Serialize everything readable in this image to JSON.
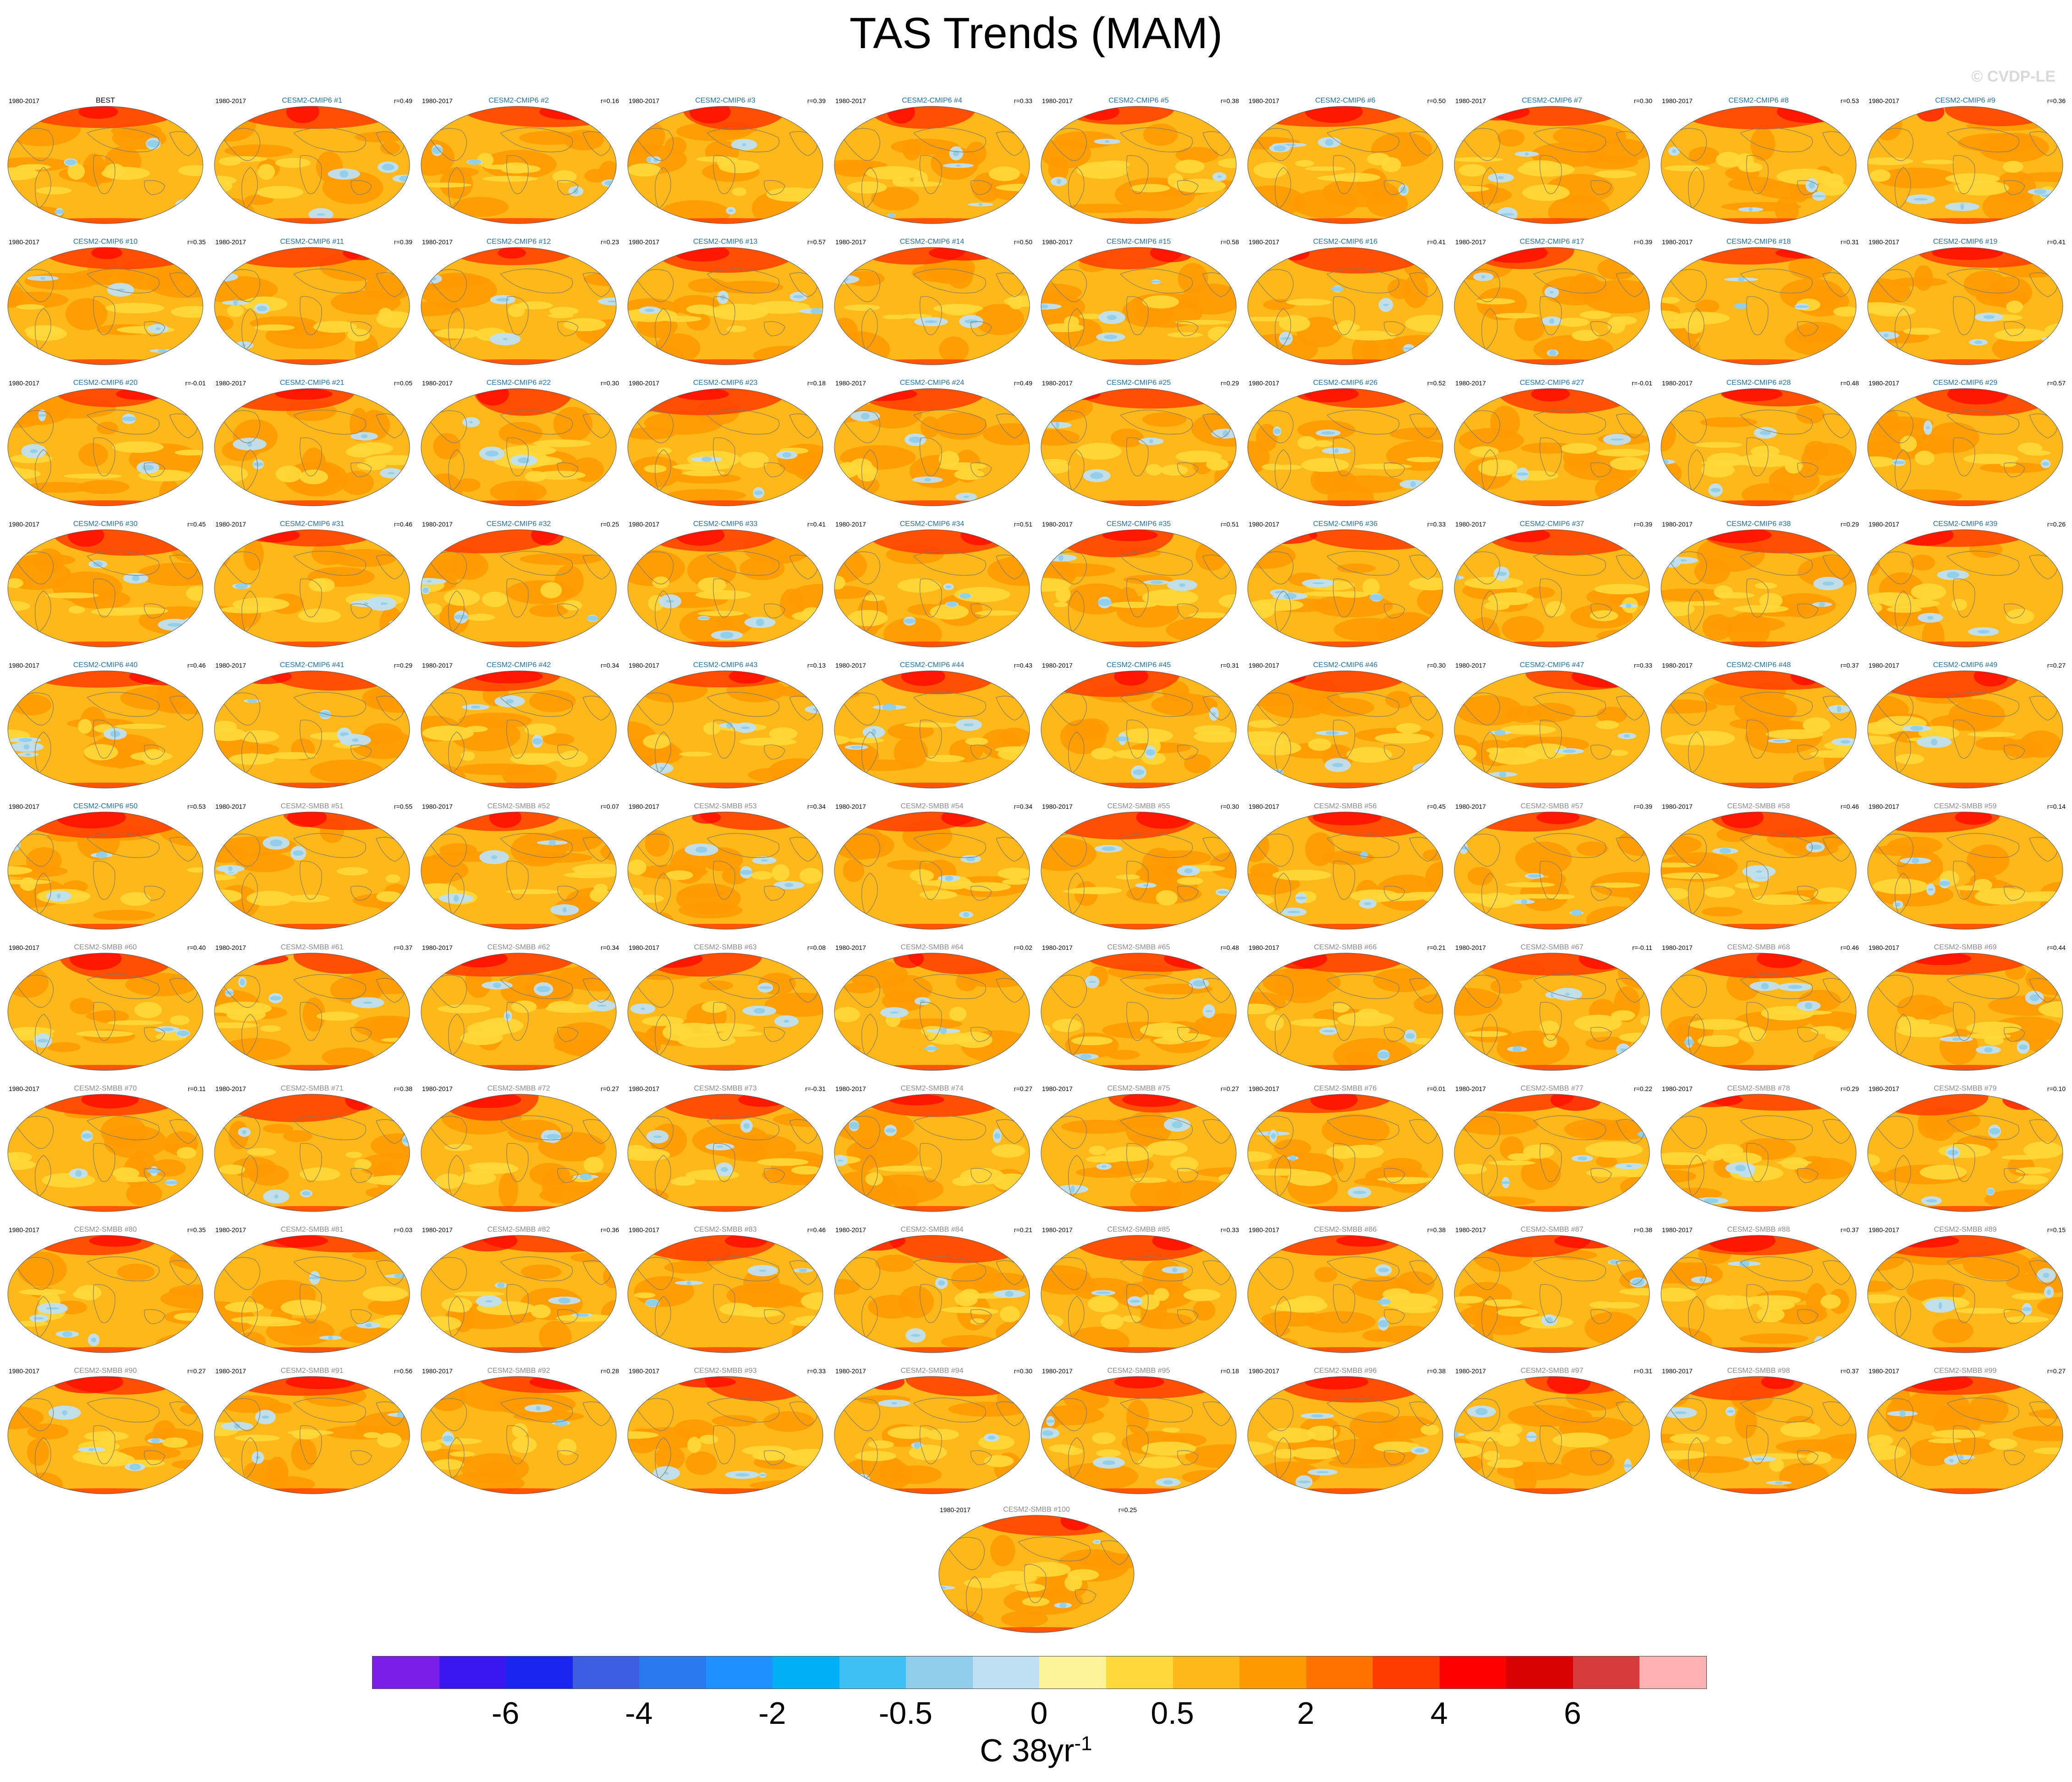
{
  "title": "TAS Trends (MAM)",
  "watermark": "© CVDP-LE",
  "period": "1980-2017",
  "panels": [
    {
      "name": "BEST",
      "corr": "",
      "group": "obs"
    },
    {
      "name": "CESM2-CMIP6 #1",
      "corr": "r=0.49",
      "group": "cmip"
    },
    {
      "name": "CESM2-CMIP6 #2",
      "corr": "r=0.16",
      "group": "cmip"
    },
    {
      "name": "CESM2-CMIP6 #3",
      "corr": "r=0.39",
      "group": "cmip"
    },
    {
      "name": "CESM2-CMIP6 #4",
      "corr": "r=0.33",
      "group": "cmip"
    },
    {
      "name": "CESM2-CMIP6 #5",
      "corr": "r=0.38",
      "group": "cmip"
    },
    {
      "name": "CESM2-CMIP6 #6",
      "corr": "r=0.50",
      "group": "cmip"
    },
    {
      "name": "CESM2-CMIP6 #7",
      "corr": "r=0.30",
      "group": "cmip"
    },
    {
      "name": "CESM2-CMIP6 #8",
      "corr": "r=0.53",
      "group": "cmip"
    },
    {
      "name": "CESM2-CMIP6 #9",
      "corr": "r=0.36",
      "group": "cmip"
    },
    {
      "name": "CESM2-CMIP6 #10",
      "corr": "r=0.35",
      "group": "cmip"
    },
    {
      "name": "CESM2-CMIP6 #11",
      "corr": "r=0.39",
      "group": "cmip"
    },
    {
      "name": "CESM2-CMIP6 #12",
      "corr": "r=0.23",
      "group": "cmip"
    },
    {
      "name": "CESM2-CMIP6 #13",
      "corr": "r=0.57",
      "group": "cmip"
    },
    {
      "name": "CESM2-CMIP6 #14",
      "corr": "r=0.50",
      "group": "cmip"
    },
    {
      "name": "CESM2-CMIP6 #15",
      "corr": "r=0.58",
      "group": "cmip"
    },
    {
      "name": "CESM2-CMIP6 #16",
      "corr": "r=0.41",
      "group": "cmip"
    },
    {
      "name": "CESM2-CMIP6 #17",
      "corr": "r=0.39",
      "group": "cmip"
    },
    {
      "name": "CESM2-CMIP6 #18",
      "corr": "r=0.31",
      "group": "cmip"
    },
    {
      "name": "CESM2-CMIP6 #19",
      "corr": "r=0.41",
      "group": "cmip"
    },
    {
      "name": "CESM2-CMIP6 #20",
      "corr": "r=-0.01",
      "group": "cmip"
    },
    {
      "name": "CESM2-CMIP6 #21",
      "corr": "r=0.05",
      "group": "cmip"
    },
    {
      "name": "CESM2-CMIP6 #22",
      "corr": "r=0.30",
      "group": "cmip"
    },
    {
      "name": "CESM2-CMIP6 #23",
      "corr": "r=0.18",
      "group": "cmip"
    },
    {
      "name": "CESM2-CMIP6 #24",
      "corr": "r=0.49",
      "group": "cmip"
    },
    {
      "name": "CESM2-CMIP6 #25",
      "corr": "r=0.29",
      "group": "cmip"
    },
    {
      "name": "CESM2-CMIP6 #26",
      "corr": "r=0.52",
      "group": "cmip"
    },
    {
      "name": "CESM2-CMIP6 #27",
      "corr": "r=-0.01",
      "group": "cmip"
    },
    {
      "name": "CESM2-CMIP6 #28",
      "corr": "r=0.48",
      "group": "cmip"
    },
    {
      "name": "CESM2-CMIP6 #29",
      "corr": "r=0.57",
      "group": "cmip"
    },
    {
      "name": "CESM2-CMIP6 #30",
      "corr": "r=0.45",
      "group": "cmip"
    },
    {
      "name": "CESM2-CMIP6 #31",
      "corr": "r=0.46",
      "group": "cmip"
    },
    {
      "name": "CESM2-CMIP6 #32",
      "corr": "r=0.25",
      "group": "cmip"
    },
    {
      "name": "CESM2-CMIP6 #33",
      "corr": "r=0.41",
      "group": "cmip"
    },
    {
      "name": "CESM2-CMIP6 #34",
      "corr": "r=0.51",
      "group": "cmip"
    },
    {
      "name": "CESM2-CMIP6 #35",
      "corr": "r=0.51",
      "group": "cmip"
    },
    {
      "name": "CESM2-CMIP6 #36",
      "corr": "r=0.33",
      "group": "cmip"
    },
    {
      "name": "CESM2-CMIP6 #37",
      "corr": "r=0.39",
      "group": "cmip"
    },
    {
      "name": "CESM2-CMIP6 #38",
      "corr": "r=0.29",
      "group": "cmip"
    },
    {
      "name": "CESM2-CMIP6 #39",
      "corr": "r=0.26",
      "group": "cmip"
    },
    {
      "name": "CESM2-CMIP6 #40",
      "corr": "r=0.46",
      "group": "cmip"
    },
    {
      "name": "CESM2-CMIP6 #41",
      "corr": "r=0.29",
      "group": "cmip"
    },
    {
      "name": "CESM2-CMIP6 #42",
      "corr": "r=0.34",
      "group": "cmip"
    },
    {
      "name": "CESM2-CMIP6 #43",
      "corr": "r=0.13",
      "group": "cmip"
    },
    {
      "name": "CESM2-CMIP6 #44",
      "corr": "r=0.43",
      "group": "cmip"
    },
    {
      "name": "CESM2-CMIP6 #45",
      "corr": "r=0.31",
      "group": "cmip"
    },
    {
      "name": "CESM2-CMIP6 #46",
      "corr": "r=0.30",
      "group": "cmip"
    },
    {
      "name": "CESM2-CMIP6 #47",
      "corr": "r=0.33",
      "group": "cmip"
    },
    {
      "name": "CESM2-CMIP6 #48",
      "corr": "r=0.37",
      "group": "cmip"
    },
    {
      "name": "CESM2-CMIP6 #49",
      "corr": "r=0.27",
      "group": "cmip"
    },
    {
      "name": "CESM2-CMIP6 #50",
      "corr": "r=0.53",
      "group": "cmip"
    },
    {
      "name": "CESM2-SMBB #51",
      "corr": "r=0.55",
      "group": "smbb"
    },
    {
      "name": "CESM2-SMBB #52",
      "corr": "r=0.07",
      "group": "smbb"
    },
    {
      "name": "CESM2-SMBB #53",
      "corr": "r=0.34",
      "group": "smbb"
    },
    {
      "name": "CESM2-SMBB #54",
      "corr": "r=0.34",
      "group": "smbb"
    },
    {
      "name": "CESM2-SMBB #55",
      "corr": "r=0.30",
      "group": "smbb"
    },
    {
      "name": "CESM2-SMBB #56",
      "corr": "r=0.45",
      "group": "smbb"
    },
    {
      "name": "CESM2-SMBB #57",
      "corr": "r=0.39",
      "group": "smbb"
    },
    {
      "name": "CESM2-SMBB #58",
      "corr": "r=0.46",
      "group": "smbb"
    },
    {
      "name": "CESM2-SMBB #59",
      "corr": "r=0.14",
      "group": "smbb"
    },
    {
      "name": "CESM2-SMBB #60",
      "corr": "r=0.40",
      "group": "smbb"
    },
    {
      "name": "CESM2-SMBB #61",
      "corr": "r=0.37",
      "group": "smbb"
    },
    {
      "name": "CESM2-SMBB #62",
      "corr": "r=0.34",
      "group": "smbb"
    },
    {
      "name": "CESM2-SMBB #63",
      "corr": "r=0.08",
      "group": "smbb"
    },
    {
      "name": "CESM2-SMBB #64",
      "corr": "r=0.02",
      "group": "smbb"
    },
    {
      "name": "CESM2-SMBB #65",
      "corr": "r=0.48",
      "group": "smbb"
    },
    {
      "name": "CESM2-SMBB #66",
      "corr": "r=0.21",
      "group": "smbb"
    },
    {
      "name": "CESM2-SMBB #67",
      "corr": "r=-0.11",
      "group": "smbb"
    },
    {
      "name": "CESM2-SMBB #68",
      "corr": "r=0.46",
      "group": "smbb"
    },
    {
      "name": "CESM2-SMBB #69",
      "corr": "r=0.44",
      "group": "smbb"
    },
    {
      "name": "CESM2-SMBB #70",
      "corr": "r=0.11",
      "group": "smbb"
    },
    {
      "name": "CESM2-SMBB #71",
      "corr": "r=0.38",
      "group": "smbb"
    },
    {
      "name": "CESM2-SMBB #72",
      "corr": "r=0.27",
      "group": "smbb"
    },
    {
      "name": "CESM2-SMBB #73",
      "corr": "r=-0.31",
      "group": "smbb"
    },
    {
      "name": "CESM2-SMBB #74",
      "corr": "r=0.27",
      "group": "smbb"
    },
    {
      "name": "CESM2-SMBB #75",
      "corr": "r=0.27",
      "group": "smbb"
    },
    {
      "name": "CESM2-SMBB #76",
      "corr": "r=0.01",
      "group": "smbb"
    },
    {
      "name": "CESM2-SMBB #77",
      "corr": "r=0.22",
      "group": "smbb"
    },
    {
      "name": "CESM2-SMBB #78",
      "corr": "r=0.29",
      "group": "smbb"
    },
    {
      "name": "CESM2-SMBB #79",
      "corr": "r=0.10",
      "group": "smbb"
    },
    {
      "name": "CESM2-SMBB #80",
      "corr": "r=0.35",
      "group": "smbb"
    },
    {
      "name": "CESM2-SMBB #81",
      "corr": "r=0.03",
      "group": "smbb"
    },
    {
      "name": "CESM2-SMBB #82",
      "corr": "r=0.36",
      "group": "smbb"
    },
    {
      "name": "CESM2-SMBB #83",
      "corr": "r=0.46",
      "group": "smbb"
    },
    {
      "name": "CESM2-SMBB #84",
      "corr": "r=0.21",
      "group": "smbb"
    },
    {
      "name": "CESM2-SMBB #85",
      "corr": "r=0.33",
      "group": "smbb"
    },
    {
      "name": "CESM2-SMBB #86",
      "corr": "r=0.38",
      "group": "smbb"
    },
    {
      "name": "CESM2-SMBB #87",
      "corr": "r=0.38",
      "group": "smbb"
    },
    {
      "name": "CESM2-SMBB #88",
      "corr": "r=0.37",
      "group": "smbb"
    },
    {
      "name": "CESM2-SMBB #89",
      "corr": "r=0.15",
      "group": "smbb"
    },
    {
      "name": "CESM2-SMBB #90",
      "corr": "r=0.27",
      "group": "smbb"
    },
    {
      "name": "CESM2-SMBB #91",
      "corr": "r=0.56",
      "group": "smbb"
    },
    {
      "name": "CESM2-SMBB #92",
      "corr": "r=0.28",
      "group": "smbb"
    },
    {
      "name": "CESM2-SMBB #93",
      "corr": "r=0.33",
      "group": "smbb"
    },
    {
      "name": "CESM2-SMBB #94",
      "corr": "r=0.30",
      "group": "smbb"
    },
    {
      "name": "CESM2-SMBB #95",
      "corr": "r=0.18",
      "group": "smbb"
    },
    {
      "name": "CESM2-SMBB #96",
      "corr": "r=0.38",
      "group": "smbb"
    },
    {
      "name": "CESM2-SMBB #97",
      "corr": "r=0.31",
      "group": "smbb"
    },
    {
      "name": "CESM2-SMBB #98",
      "corr": "r=0.37",
      "group": "smbb"
    },
    {
      "name": "CESM2-SMBB #99",
      "corr": "r=0.27",
      "group": "smbb"
    },
    {
      "name": "CESM2-SMBB #100",
      "corr": "r=0.25",
      "group": "smbb"
    }
  ],
  "colorbar": {
    "colors": [
      "#7b1fe8",
      "#3a16f0",
      "#1a26f0",
      "#3b5fe0",
      "#2a78ee",
      "#1e90ff",
      "#00b0f5",
      "#3ec0f5",
      "#8fcdea",
      "#bfe0f2",
      "#fff39a",
      "#ffd93a",
      "#ffb81a",
      "#ff9900",
      "#ff7200",
      "#ff3c00",
      "#ff0000",
      "#d80000",
      "#d63a3a",
      "#ffb0b0"
    ],
    "tick_labels": [
      "-6",
      "-4",
      "-2",
      "-0.5",
      "0",
      "0.5",
      "2",
      "4",
      "6"
    ],
    "units": "C 38yr",
    "units_exponent": "-1"
  },
  "label_colors": {
    "obs": "#000000",
    "cmip": "#1f6fa8",
    "smbb": "#8a8a8a"
  }
}
